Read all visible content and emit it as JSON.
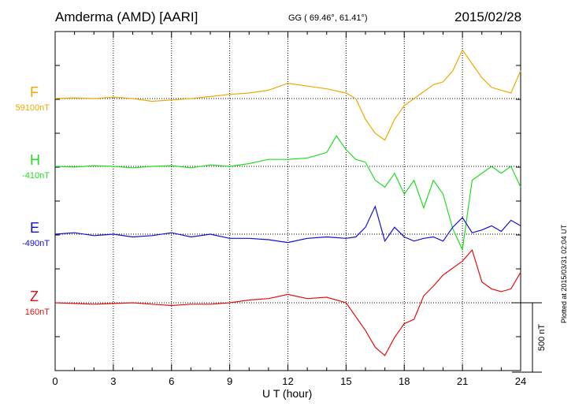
{
  "header": {
    "station": "Amderma (AMD)  [AARI]",
    "coords": "GG ( 69.46°,  61.41°)",
    "date": "2015/02/28"
  },
  "footer": {
    "plotted": "Plotted at 2015/03/31 02:04 UT"
  },
  "chart_data": {
    "type": "line",
    "xlabel": "U T (hour)",
    "xlim": [
      0,
      24
    ],
    "xticks": [
      0,
      3,
      6,
      9,
      12,
      15,
      18,
      21,
      24
    ],
    "scale_bar": {
      "label": "500 nT",
      "value": 500
    },
    "grid": true,
    "series": [
      {
        "name": "F",
        "baseline": "59100nT",
        "color": "#f0a800",
        "x": [
          0,
          1,
          2,
          3,
          4,
          5,
          6,
          7,
          8,
          9,
          10,
          11,
          12,
          13,
          14,
          15,
          15.5,
          16,
          16.5,
          17,
          17.5,
          18,
          18.5,
          19,
          19.5,
          20,
          20.5,
          21,
          21.5,
          22,
          22.5,
          23,
          23.5,
          24
        ],
        "y": [
          0,
          5,
          0,
          10,
          0,
          -20,
          -10,
          0,
          15,
          30,
          40,
          60,
          110,
          90,
          70,
          40,
          0,
          -150,
          -250,
          -300,
          -150,
          -50,
          0,
          50,
          100,
          120,
          200,
          350,
          250,
          150,
          80,
          60,
          40,
          200
        ]
      },
      {
        "name": "H",
        "baseline": "-410nT",
        "color": "#22dd22",
        "x": [
          0,
          1,
          2,
          3,
          4,
          5,
          6,
          7,
          8,
          9,
          10,
          11,
          12,
          13,
          14,
          14.5,
          15,
          15.5,
          16,
          16.5,
          17,
          17.5,
          18,
          18.5,
          19,
          19.5,
          20,
          20.5,
          21,
          21.5,
          22,
          22.5,
          23,
          23.5,
          24
        ],
        "y": [
          0,
          -5,
          5,
          0,
          -10,
          0,
          5,
          -10,
          10,
          0,
          20,
          50,
          50,
          60,
          100,
          220,
          120,
          50,
          30,
          -100,
          -150,
          -50,
          -200,
          -100,
          -300,
          -100,
          -200,
          -450,
          -600,
          -100,
          -50,
          0,
          -50,
          0,
          -150
        ]
      },
      {
        "name": "E",
        "baseline": "-490nT",
        "color": "#1010cc",
        "x": [
          0,
          1,
          2,
          3,
          4,
          5,
          6,
          7,
          8,
          9,
          10,
          11,
          12,
          13,
          14,
          15,
          15.5,
          16,
          16.5,
          17,
          17.5,
          18,
          18.5,
          19,
          19.5,
          20,
          20.5,
          21,
          21.5,
          22,
          22.5,
          23,
          23.5,
          24
        ],
        "y": [
          0,
          10,
          -10,
          0,
          -20,
          -10,
          10,
          -20,
          0,
          -30,
          -30,
          -40,
          -60,
          -30,
          -20,
          -30,
          -20,
          50,
          200,
          -50,
          50,
          -20,
          -50,
          -30,
          -20,
          -50,
          50,
          120,
          10,
          30,
          60,
          20,
          100,
          60
        ]
      },
      {
        "name": "Z",
        "baseline": "160nT",
        "color": "#e01010",
        "x": [
          0,
          1,
          2,
          3,
          4,
          5,
          6,
          7,
          8,
          9,
          10,
          11,
          12,
          13,
          14,
          15,
          15.5,
          16,
          16.5,
          17,
          17.5,
          18,
          18.5,
          19,
          19.5,
          20,
          20.5,
          21,
          21.5,
          22,
          22.5,
          23,
          23.5,
          24
        ],
        "y": [
          0,
          -5,
          -10,
          -5,
          0,
          -10,
          -20,
          -10,
          -10,
          0,
          20,
          30,
          60,
          30,
          40,
          0,
          -100,
          -200,
          -320,
          -380,
          -250,
          -150,
          -120,
          50,
          120,
          200,
          250,
          300,
          380,
          150,
          100,
          80,
          100,
          220
        ]
      }
    ]
  }
}
